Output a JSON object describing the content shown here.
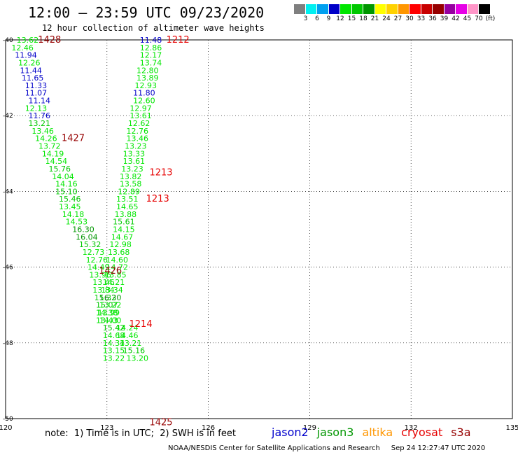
{
  "header": {
    "title": "12:00 – 23:59 UTC 09/23/2020",
    "subtitle": "12 hour collection of altimeter wave heights"
  },
  "color_scale": {
    "labels": [
      "3",
      "6",
      "9",
      "12",
      "15",
      "18",
      "21",
      "24",
      "27",
      "30",
      "33",
      "36",
      "39",
      "42",
      "45",
      "70",
      "(ft)"
    ],
    "colors": [
      "#7f7f7f",
      "#00f0f0",
      "#00a0f0",
      "#0000c8",
      "#00e600",
      "#00c800",
      "#009600",
      "#ffff00",
      "#ffd200",
      "#ff9600",
      "#ff0000",
      "#c80000",
      "#960000",
      "#9600a0",
      "#e600e6",
      "#ff96c8",
      "#000000"
    ]
  },
  "note": "note:  1) Time is in UTC;  2) SWH is in feet",
  "satellites": [
    {
      "name": "jason2",
      "color": "#0000cc"
    },
    {
      "name": "jason3",
      "color": "#009600"
    },
    {
      "name": "altika",
      "color": "#ff9600"
    },
    {
      "name": "cryosat",
      "color": "#e60000"
    },
    {
      "name": "s3a",
      "color": "#960000"
    }
  ],
  "credit": "NOAA/NESDIS Center for Satellite Applications and Research     Sep 24 12:27:47 UTC 2020",
  "chart_data": {
    "type": "scatter",
    "title": "12:00 – 23:59 UTC 09/23/2020",
    "xlim": [
      120,
      135
    ],
    "ylim": [
      -50,
      -40
    ],
    "grid": true,
    "x_ticks": [
      {
        "value": 120,
        "label": "120"
      },
      {
        "value": 123,
        "label": "123"
      },
      {
        "value": 126,
        "label": "126"
      },
      {
        "value": 129,
        "label": "129"
      },
      {
        "value": 132,
        "label": "132"
      },
      {
        "value": 135,
        "label": "135"
      }
    ],
    "y_ticks": [
      {
        "value": -40,
        "label": "-40"
      },
      {
        "value": -42,
        "label": "-42"
      },
      {
        "value": -44,
        "label": "-44"
      },
      {
        "value": -46,
        "label": "-46"
      },
      {
        "value": -48,
        "label": "-48"
      },
      {
        "value": -50,
        "label": "-50"
      }
    ],
    "pass_labels": [
      {
        "text": "1428",
        "x": 121.3,
        "y": -40.0,
        "color": "#960000"
      },
      {
        "text": "1212",
        "x": 125.1,
        "y": -40.0,
        "color": "#e60000"
      },
      {
        "text": "1427",
        "x": 122.0,
        "y": -42.6,
        "color": "#960000"
      },
      {
        "text": "1213",
        "x": 124.6,
        "y": -43.5,
        "color": "#e60000"
      },
      {
        "text": "1213",
        "x": 124.5,
        "y": -44.2,
        "color": "#e60000"
      },
      {
        "text": "1426",
        "x": 123.1,
        "y": -46.1,
        "color": "#960000"
      },
      {
        "text": "1214",
        "x": 124.0,
        "y": -47.5,
        "color": "#e60000"
      },
      {
        "text": "1425",
        "x": 124.6,
        "y": -50.1,
        "color": "#960000"
      }
    ],
    "points": [
      {
        "x": 120.65,
        "y": -40.0,
        "v": "13.62",
        "c": "#00e600"
      },
      {
        "x": 120.5,
        "y": -40.2,
        "v": "12.46",
        "c": "#00e600"
      },
      {
        "x": 120.6,
        "y": -40.4,
        "v": "11.94",
        "c": "#0000c8"
      },
      {
        "x": 120.7,
        "y": -40.6,
        "v": "12.26",
        "c": "#00e600"
      },
      {
        "x": 120.75,
        "y": -40.8,
        "v": "11.44",
        "c": "#0000c8"
      },
      {
        "x": 120.8,
        "y": -41.0,
        "v": "11.65",
        "c": "#0000c8"
      },
      {
        "x": 120.9,
        "y": -41.2,
        "v": "11.33",
        "c": "#0000c8"
      },
      {
        "x": 120.9,
        "y": -41.4,
        "v": "11.07",
        "c": "#0000c8"
      },
      {
        "x": 121.0,
        "y": -41.6,
        "v": "11.14",
        "c": "#0000c8"
      },
      {
        "x": 120.9,
        "y": -41.8,
        "v": "12.13",
        "c": "#00e600"
      },
      {
        "x": 121.0,
        "y": -42.0,
        "v": "11.76",
        "c": "#0000c8"
      },
      {
        "x": 121.0,
        "y": -42.2,
        "v": "13.21",
        "c": "#00c800"
      },
      {
        "x": 121.1,
        "y": -42.4,
        "v": "13.46",
        "c": "#00e600"
      },
      {
        "x": 121.2,
        "y": -42.6,
        "v": "14.26",
        "c": "#00e600"
      },
      {
        "x": 121.3,
        "y": -42.8,
        "v": "13.72",
        "c": "#00e600"
      },
      {
        "x": 121.4,
        "y": -43.0,
        "v": "14.19",
        "c": "#00e600"
      },
      {
        "x": 121.5,
        "y": -43.2,
        "v": "14.54",
        "c": "#00e600"
      },
      {
        "x": 121.6,
        "y": -43.4,
        "v": "15.76",
        "c": "#00c800"
      },
      {
        "x": 121.7,
        "y": -43.6,
        "v": "14.04",
        "c": "#00e600"
      },
      {
        "x": 121.8,
        "y": -43.8,
        "v": "14.16",
        "c": "#00e600"
      },
      {
        "x": 121.8,
        "y": -44.0,
        "v": "15.10",
        "c": "#00c800"
      },
      {
        "x": 121.9,
        "y": -44.2,
        "v": "15.46",
        "c": "#00c800"
      },
      {
        "x": 121.9,
        "y": -44.4,
        "v": "13.45",
        "c": "#00e600"
      },
      {
        "x": 122.0,
        "y": -44.6,
        "v": "14.18",
        "c": "#00e600"
      },
      {
        "x": 122.1,
        "y": -44.8,
        "v": "14.53",
        "c": "#00e600"
      },
      {
        "x": 122.3,
        "y": -45.0,
        "v": "16.30",
        "c": "#009600"
      },
      {
        "x": 122.4,
        "y": -45.2,
        "v": "16.04",
        "c": "#009600"
      },
      {
        "x": 122.5,
        "y": -45.4,
        "v": "15.32",
        "c": "#00c800"
      },
      {
        "x": 122.6,
        "y": -45.6,
        "v": "12.73",
        "c": "#00e600"
      },
      {
        "x": 122.7,
        "y": -45.8,
        "v": "12.76",
        "c": "#00e600"
      },
      {
        "x": 122.75,
        "y": -46.0,
        "v": "14.49",
        "c": "#00e600"
      },
      {
        "x": 122.8,
        "y": -46.2,
        "v": "13.96",
        "c": "#00e600"
      },
      {
        "x": 122.9,
        "y": -46.4,
        "v": "13.46",
        "c": "#00e600"
      },
      {
        "x": 122.9,
        "y": -46.6,
        "v": "13.84",
        "c": "#00e600"
      },
      {
        "x": 122.95,
        "y": -46.8,
        "v": "15.32",
        "c": "#00c800"
      },
      {
        "x": 123.0,
        "y": -47.0,
        "v": "15.07",
        "c": "#00c800"
      },
      {
        "x": 123.0,
        "y": -47.2,
        "v": "14.38",
        "c": "#00e600"
      },
      {
        "x": 123.1,
        "y": -47.4,
        "v": "14.00",
        "c": "#00e600"
      },
      {
        "x": 123.2,
        "y": -47.6,
        "v": "15.42",
        "c": "#00c800"
      },
      {
        "x": 123.2,
        "y": -47.8,
        "v": "14.68",
        "c": "#00e600"
      },
      {
        "x": 123.2,
        "y": -48.0,
        "v": "14.34",
        "c": "#00e600"
      },
      {
        "x": 123.2,
        "y": -48.2,
        "v": "13.15",
        "c": "#00e600"
      },
      {
        "x": 123.2,
        "y": -48.4,
        "v": "13.22",
        "c": "#00e600"
      },
      {
        "x": 124.3,
        "y": -40.0,
        "v": "11.48",
        "c": "#0000c8"
      },
      {
        "x": 124.3,
        "y": -40.2,
        "v": "12.86",
        "c": "#00e600"
      },
      {
        "x": 124.3,
        "y": -40.4,
        "v": "12.17",
        "c": "#00e600"
      },
      {
        "x": 124.3,
        "y": -40.6,
        "v": "13.74",
        "c": "#00e600"
      },
      {
        "x": 124.2,
        "y": -40.8,
        "v": "12.80",
        "c": "#00e600"
      },
      {
        "x": 124.2,
        "y": -41.0,
        "v": "13.89",
        "c": "#00e600"
      },
      {
        "x": 124.15,
        "y": -41.2,
        "v": "12.93",
        "c": "#00e600"
      },
      {
        "x": 124.1,
        "y": -41.4,
        "v": "11.80",
        "c": "#0000c8"
      },
      {
        "x": 124.1,
        "y": -41.6,
        "v": "12.60",
        "c": "#00e600"
      },
      {
        "x": 124.0,
        "y": -41.8,
        "v": "12.97",
        "c": "#00e600"
      },
      {
        "x": 124.0,
        "y": -42.0,
        "v": "13.61",
        "c": "#00e600"
      },
      {
        "x": 123.95,
        "y": -42.2,
        "v": "12.62",
        "c": "#00e600"
      },
      {
        "x": 123.9,
        "y": -42.4,
        "v": "12.76",
        "c": "#00e600"
      },
      {
        "x": 123.9,
        "y": -42.6,
        "v": "13.46",
        "c": "#00e600"
      },
      {
        "x": 123.85,
        "y": -42.8,
        "v": "13.23",
        "c": "#00e600"
      },
      {
        "x": 123.8,
        "y": -43.0,
        "v": "13.33",
        "c": "#00e600"
      },
      {
        "x": 123.8,
        "y": -43.2,
        "v": "13.61",
        "c": "#00e600"
      },
      {
        "x": 123.75,
        "y": -43.4,
        "v": "13.23",
        "c": "#00e600"
      },
      {
        "x": 123.7,
        "y": -43.6,
        "v": "13.82",
        "c": "#00e600"
      },
      {
        "x": 123.7,
        "y": -43.8,
        "v": "13.58",
        "c": "#00e600"
      },
      {
        "x": 123.65,
        "y": -44.0,
        "v": "12.89",
        "c": "#00e600"
      },
      {
        "x": 123.6,
        "y": -44.2,
        "v": "13.51",
        "c": "#00e600"
      },
      {
        "x": 123.6,
        "y": -44.4,
        "v": "14.65",
        "c": "#00e600"
      },
      {
        "x": 123.55,
        "y": -44.6,
        "v": "13.88",
        "c": "#00e600"
      },
      {
        "x": 123.5,
        "y": -44.8,
        "v": "15.61",
        "c": "#00c800"
      },
      {
        "x": 123.5,
        "y": -45.0,
        "v": "14.15",
        "c": "#00e600"
      },
      {
        "x": 123.45,
        "y": -45.2,
        "v": "14.67",
        "c": "#00e600"
      },
      {
        "x": 123.4,
        "y": -45.4,
        "v": "12.98",
        "c": "#00e600"
      },
      {
        "x": 123.35,
        "y": -45.6,
        "v": "13.68",
        "c": "#00e600"
      },
      {
        "x": 123.3,
        "y": -45.8,
        "v": "14.60",
        "c": "#00e600"
      },
      {
        "x": 123.3,
        "y": -46.0,
        "v": "14.72",
        "c": "#00e600"
      },
      {
        "x": 123.25,
        "y": -46.2,
        "v": "13.85",
        "c": "#00e600"
      },
      {
        "x": 123.2,
        "y": -46.4,
        "v": "14.21",
        "c": "#00e600"
      },
      {
        "x": 123.15,
        "y": -46.6,
        "v": "13.34",
        "c": "#00e600"
      },
      {
        "x": 123.1,
        "y": -46.8,
        "v": "16.30",
        "c": "#009600"
      },
      {
        "x": 123.1,
        "y": -47.0,
        "v": "13.22",
        "c": "#00e600"
      },
      {
        "x": 123.05,
        "y": -47.2,
        "v": "13.99",
        "c": "#00e600"
      },
      {
        "x": 123.0,
        "y": -47.4,
        "v": "13.43",
        "c": "#00e600"
      },
      {
        "x": 123.6,
        "y": -47.6,
        "v": "14.24",
        "c": "#00e600"
      },
      {
        "x": 123.6,
        "y": -47.8,
        "v": "14.46",
        "c": "#00e600"
      },
      {
        "x": 123.7,
        "y": -48.0,
        "v": "13.21",
        "c": "#00e600"
      },
      {
        "x": 123.8,
        "y": -48.2,
        "v": "15.16",
        "c": "#00c800"
      },
      {
        "x": 123.9,
        "y": -48.4,
        "v": "13.20",
        "c": "#00e600"
      }
    ]
  }
}
